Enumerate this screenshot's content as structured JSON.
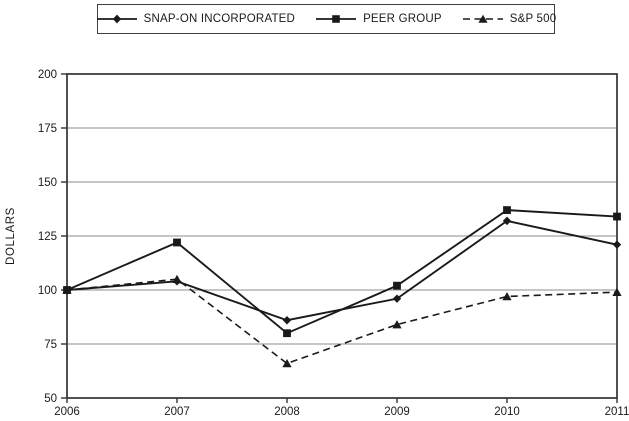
{
  "chart_data": {
    "type": "line",
    "title": "",
    "xlabel": "",
    "ylabel": "DOLLARS",
    "x": [
      "2006",
      "2007",
      "2008",
      "2009",
      "2010",
      "2011"
    ],
    "ylim": [
      50,
      200
    ],
    "yticks": [
      50,
      75,
      100,
      125,
      150,
      175,
      200
    ],
    "grid": true,
    "legend_position": "top",
    "series": [
      {
        "name": "SNAP-ON INCORPORATED",
        "marker": "diamond",
        "dash": "solid",
        "values": [
          100,
          104,
          86,
          96,
          132,
          121
        ]
      },
      {
        "name": "PEER GROUP",
        "marker": "square",
        "dash": "solid",
        "values": [
          100,
          122,
          80,
          102,
          137,
          134
        ]
      },
      {
        "name": "S&P 500",
        "marker": "triangle",
        "dash": "dashed",
        "values": [
          100,
          105,
          66,
          84,
          97,
          99
        ]
      }
    ],
    "colors": {
      "line": "#1a1a1a",
      "grid": "#8c8c8c",
      "axis": "#333333",
      "text": "#1a1a1a",
      "background": "#ffffff"
    }
  }
}
